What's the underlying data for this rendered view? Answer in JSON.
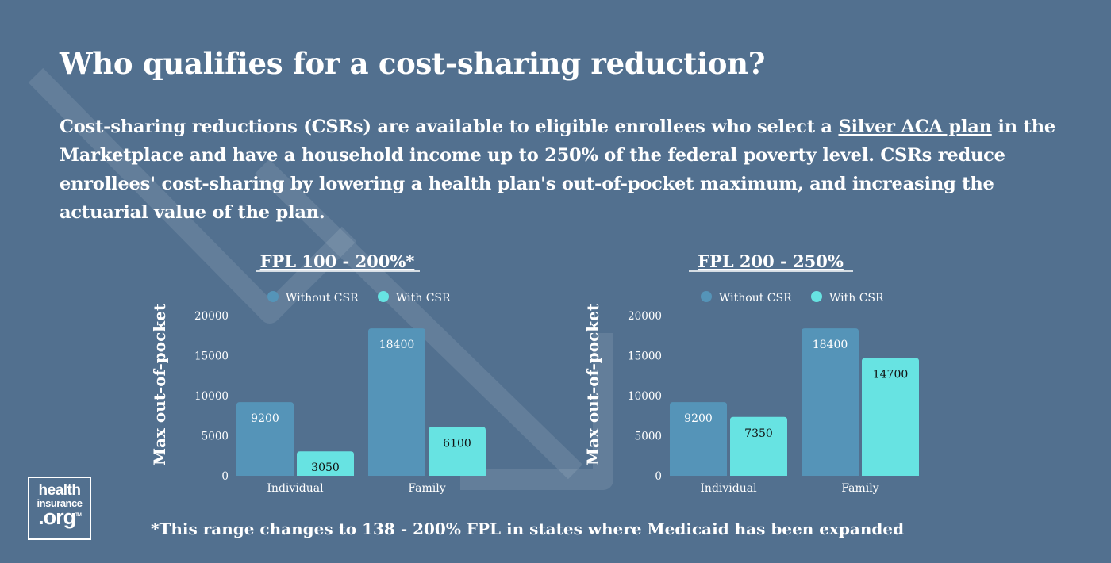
{
  "title": "Who qualifies for a cost-sharing reduction?",
  "intro": {
    "before_link": "Cost-sharing reductions (CSRs) are available to eligible enrollees who select a ",
    "link": "Silver ACA plan",
    "after_link": " in the Marketplace and have a household income up to 250% of the federal poverty level. CSRs reduce enrollees' cost-sharing by lowering a health plan's out-of-pocket maximum, and increasing the actuarial value of the plan."
  },
  "colors": {
    "background": "#52708f",
    "without_csr": "#5594b8",
    "with_csr": "#67e3e2"
  },
  "chart_data": [
    {
      "type": "bar",
      "title": "FPL 100 - 200%*",
      "categories": [
        "Individual",
        "Family"
      ],
      "series": [
        {
          "name": "Without CSR",
          "values": [
            9200,
            18400
          ]
        },
        {
          "name": "With CSR",
          "values": [
            3050,
            6100
          ]
        }
      ],
      "ylabel": "Max out-of-pocket",
      "ylim": [
        0,
        20000
      ],
      "yticks": [
        0,
        5000,
        10000,
        15000,
        20000
      ],
      "legend": "top",
      "grid": false
    },
    {
      "type": "bar",
      "title": "FPL 200 - 250%",
      "categories": [
        "Individual",
        "Family"
      ],
      "series": [
        {
          "name": "Without CSR",
          "values": [
            9200,
            18400
          ]
        },
        {
          "name": "With CSR",
          "values": [
            7350,
            14700
          ]
        }
      ],
      "ylabel": "Max out-of-pocket",
      "ylim": [
        0,
        20000
      ],
      "yticks": [
        0,
        5000,
        10000,
        15000,
        20000
      ],
      "legend": "top",
      "grid": false
    }
  ],
  "logo": {
    "line1": "health",
    "line2": "insurance",
    "line3": ".org",
    "tm": "TM"
  },
  "footnote": "*This range changes to 138 - 200% FPL in states where Medicaid has been expanded"
}
